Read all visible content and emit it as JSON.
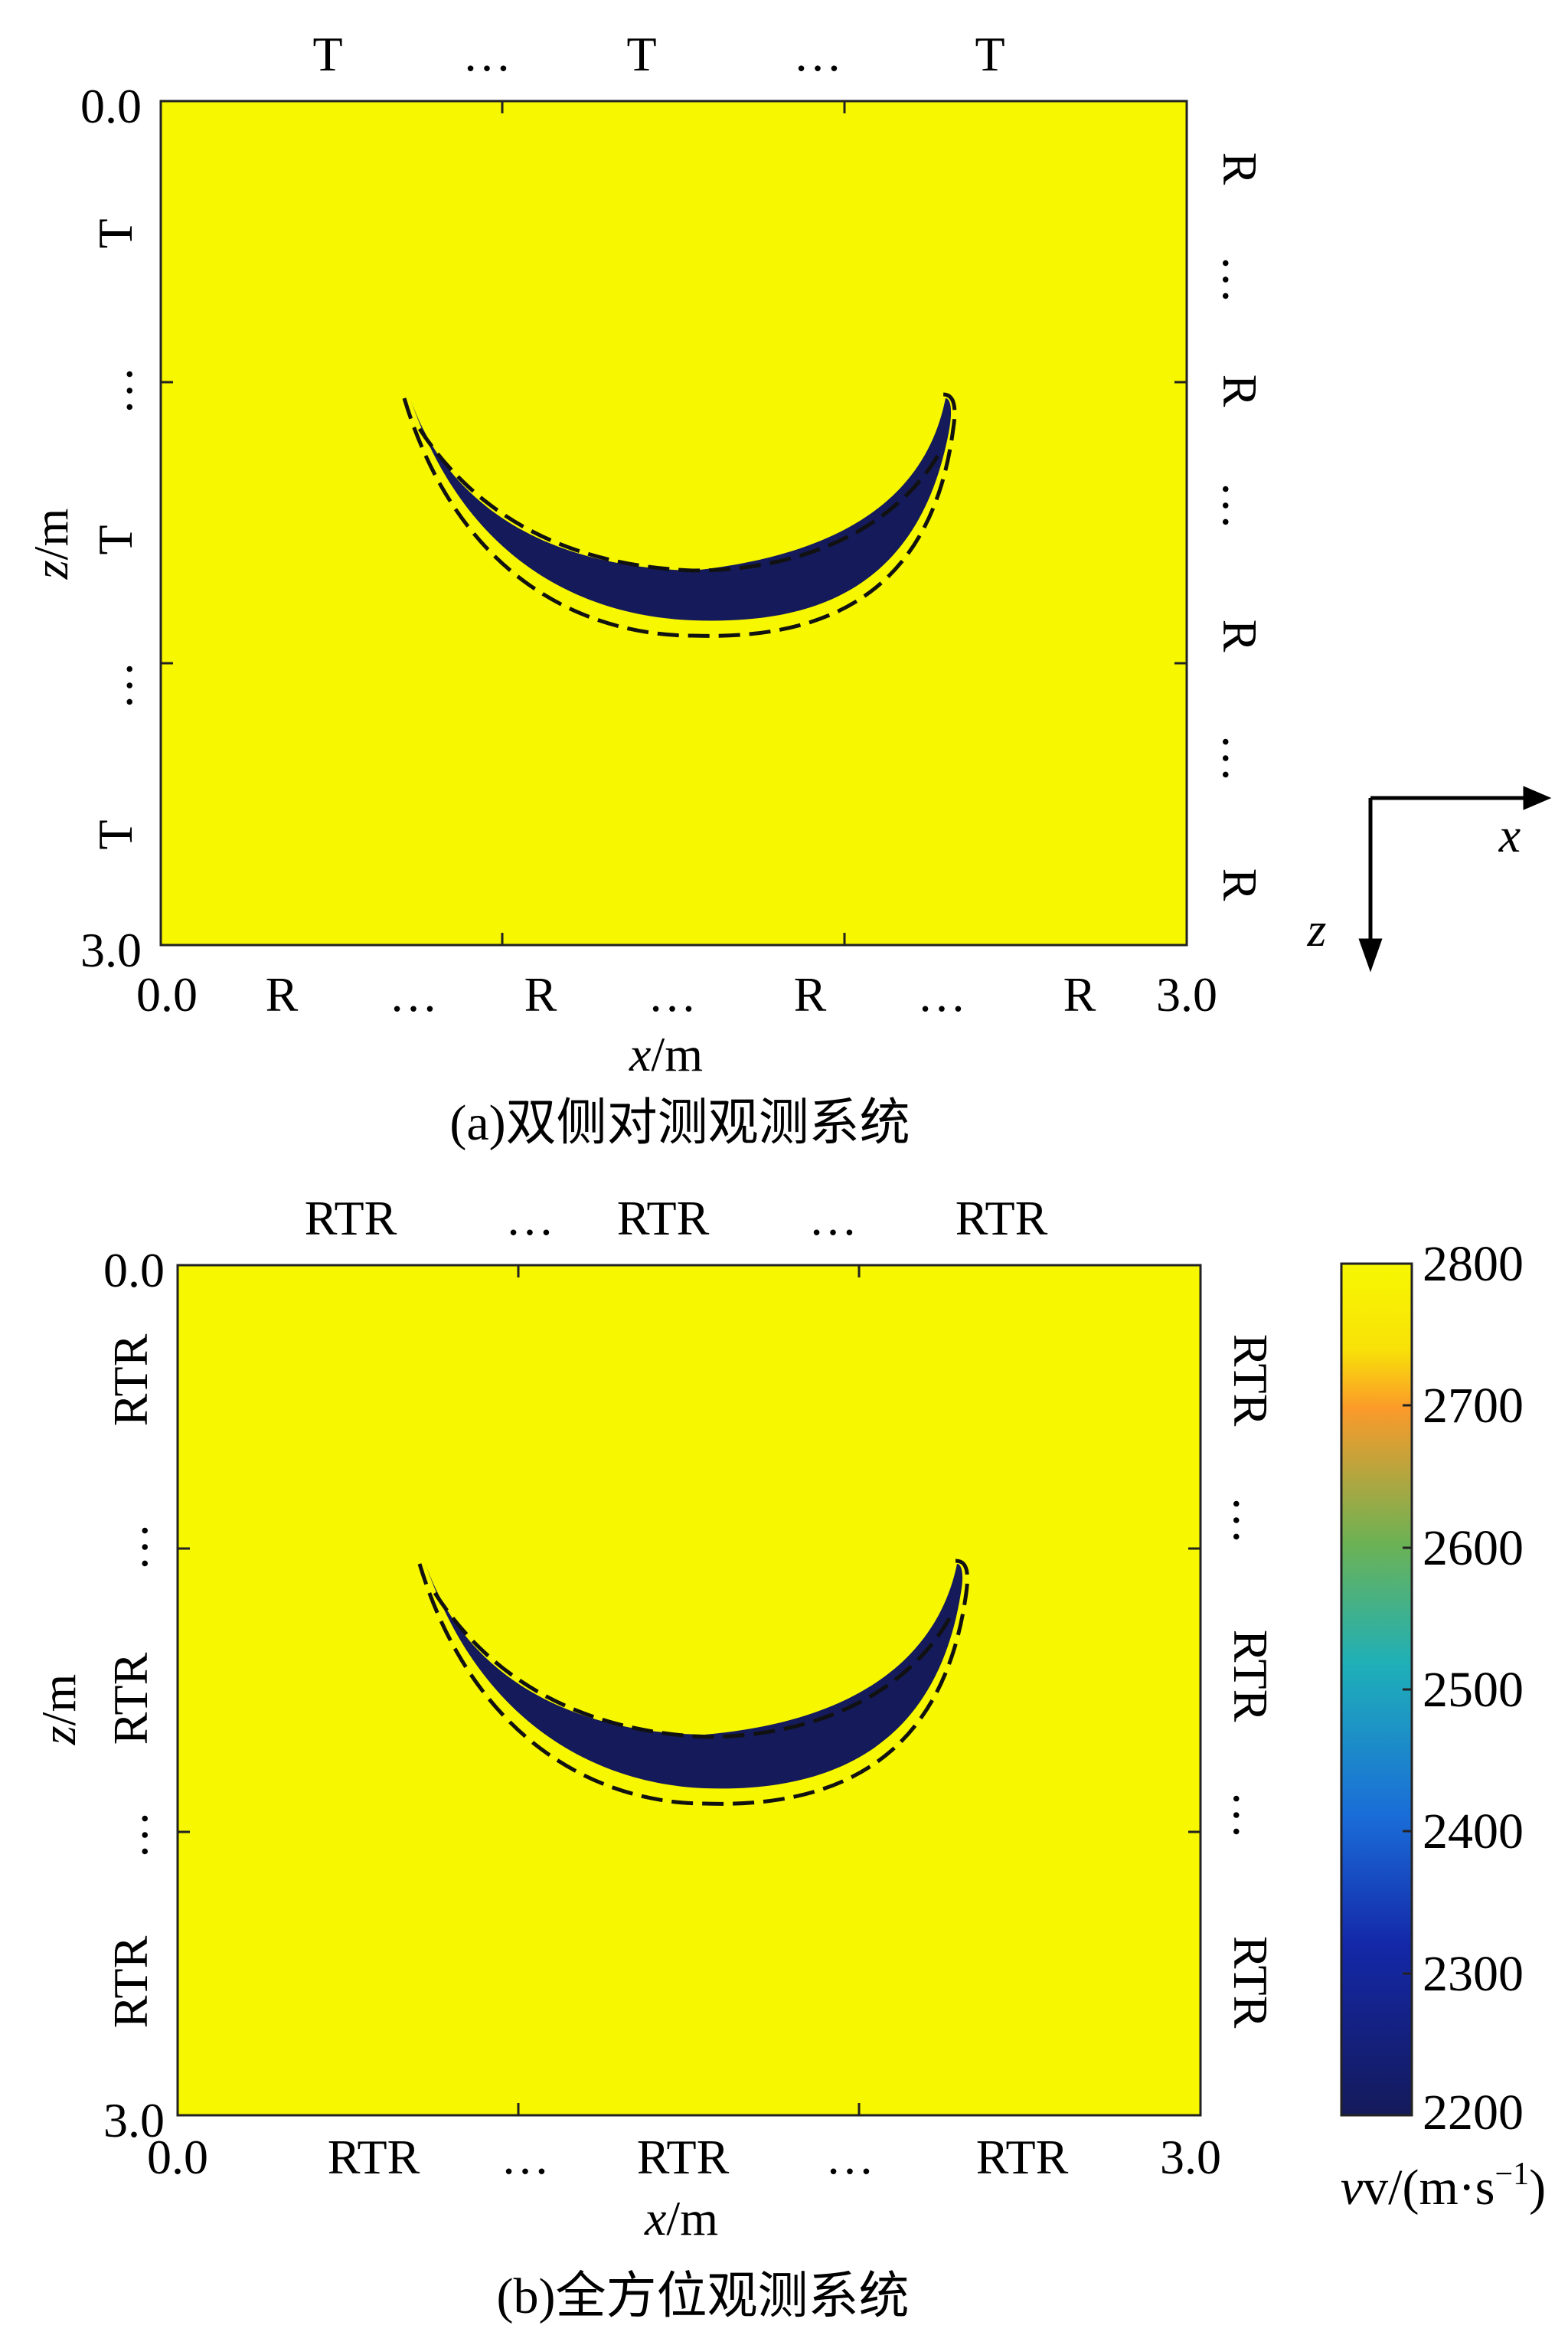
{
  "chart_data": [
    {
      "type": "heatmap",
      "panel": "a",
      "caption": "(a)双侧对测观测系统",
      "xlabel": "x/m",
      "ylabel": "z/m",
      "xlim": [
        0.0,
        3.0
      ],
      "ylim": [
        0.0,
        3.0
      ],
      "x_ticks": [
        "0.0",
        "3.0"
      ],
      "y_ticks": [
        "0.0",
        "3.0"
      ],
      "background_value": 2800,
      "anomaly_value": 2200,
      "anomaly_shape": "crescent",
      "observation": {
        "top": [
          "T",
          "…",
          "T",
          "…",
          "T"
        ],
        "left": [
          "T",
          "…",
          "T",
          "…",
          "T"
        ],
        "right": [
          "R",
          "…",
          "R",
          "…",
          "R",
          "…",
          "R"
        ],
        "bottom": [
          "R",
          "…",
          "R",
          "…",
          "R",
          "…",
          "R"
        ]
      }
    },
    {
      "type": "heatmap",
      "panel": "b",
      "caption": "(b)全方位观测系统",
      "xlabel": "x/m",
      "ylabel": "z/m",
      "xlim": [
        0.0,
        3.0
      ],
      "ylim": [
        0.0,
        3.0
      ],
      "x_ticks": [
        "0.0",
        "3.0"
      ],
      "y_ticks": [
        "0.0",
        "3.0"
      ],
      "background_value": 2800,
      "anomaly_value": 2200,
      "anomaly_shape": "crescent",
      "observation": {
        "top": [
          "RTR",
          "…",
          "RTR",
          "…",
          "RTR"
        ],
        "left": [
          "RTR",
          "…",
          "RTR",
          "…",
          "RTR"
        ],
        "right": [
          "RTR",
          "…",
          "RTR",
          "…",
          "RTR"
        ],
        "bottom": [
          "RTR",
          "…",
          "RTR",
          "…",
          "RTR"
        ]
      }
    }
  ],
  "colorbar": {
    "ticks": [
      "2800",
      "2700",
      "2600",
      "2500",
      "2400",
      "2300",
      "2200"
    ],
    "label": "v/(m·s",
    "label_sup": "−1",
    "label_close": ")",
    "colors": [
      "#f7f700",
      "#fb9a2a",
      "#27b0a0",
      "#1fb0d8",
      "#1a52d4",
      "#142aa8",
      "#141a5a"
    ]
  },
  "axes_indicator": {
    "x_label": "x",
    "z_label": "z"
  },
  "colors": {
    "background": "#f7f700",
    "anomaly": "#141a5a"
  }
}
